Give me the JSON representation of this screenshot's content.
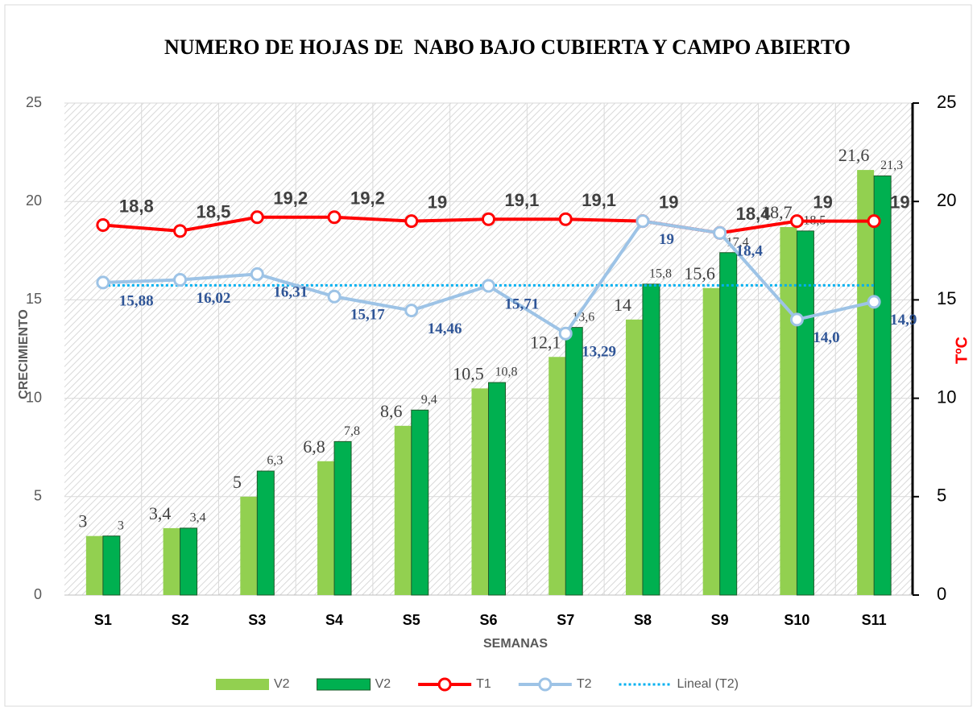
{
  "chart_data": {
    "type": "bar_line",
    "title": "NUMERO DE HOJAS DE  NABO BAJO CUBIERTA Y CAMPO ABIERTO",
    "xlabel": "SEMANAS",
    "ylabel": "CRECIMIENTO",
    "y2label": "TºC",
    "categories": [
      "S1",
      "S2",
      "S3",
      "S4",
      "S5",
      "S6",
      "S7",
      "S8",
      "S9",
      "S10",
      "S11"
    ],
    "ylim": [
      0,
      25
    ],
    "yticks": [
      0,
      5,
      10,
      15,
      20,
      25
    ],
    "y2lim": [
      0,
      25
    ],
    "y2ticks": [
      0,
      5,
      10,
      15,
      20,
      25
    ],
    "grid": true,
    "series": [
      {
        "name": "V2",
        "kind": "bar",
        "color": "#92d050",
        "values": [
          3,
          3.4,
          5,
          6.8,
          8.6,
          10.5,
          12.1,
          14,
          15.6,
          18.7,
          21.6
        ],
        "value_labels": [
          "3",
          "3,4",
          "5",
          "6,8",
          "8,6",
          "10,5",
          "12,1",
          "14",
          "15,6",
          "18,7",
          "21,6"
        ]
      },
      {
        "name": "V2",
        "kind": "bar",
        "color": "#00b050",
        "values": [
          3,
          3.4,
          6.3,
          7.8,
          9.4,
          10.8,
          13.6,
          15.8,
          17.4,
          18.5,
          21.3
        ],
        "value_labels": [
          "3",
          "3,4",
          "6,3",
          "7,8",
          "9,4",
          "10,8",
          "13,6",
          "15,8",
          "17,4",
          "18,5",
          "21,3"
        ]
      },
      {
        "name": "T1",
        "kind": "line",
        "axis": "y2",
        "color": "#ff0000",
        "values": [
          18.8,
          18.5,
          19.2,
          19.2,
          19,
          19.1,
          19.1,
          19,
          18.4,
          19,
          19
        ],
        "value_labels": [
          "18,8",
          "18,5",
          "19,2",
          "19,2",
          "19",
          "19,1",
          "19,1",
          "19",
          "18,4",
          "19",
          "19"
        ]
      },
      {
        "name": "T2",
        "kind": "line",
        "axis": "y2",
        "color": "#9dc3e6",
        "values": [
          15.88,
          16.02,
          16.31,
          15.17,
          14.46,
          15.71,
          13.29,
          19,
          18.4,
          14,
          14.9
        ],
        "value_labels": [
          "15,88",
          "16,02",
          "16,31",
          "15,17",
          "14,46",
          "15,71",
          "13,29",
          "19",
          "18,4",
          "14,0",
          "14,9"
        ]
      },
      {
        "name": "Lineal (T2)",
        "kind": "trend",
        "axis": "y2",
        "color": "#00b0f0",
        "values": [
          15.74,
          15.74,
          15.74,
          15.74,
          15.74,
          15.74,
          15.74,
          15.74,
          15.74,
          15.74,
          15.74
        ]
      }
    ]
  }
}
